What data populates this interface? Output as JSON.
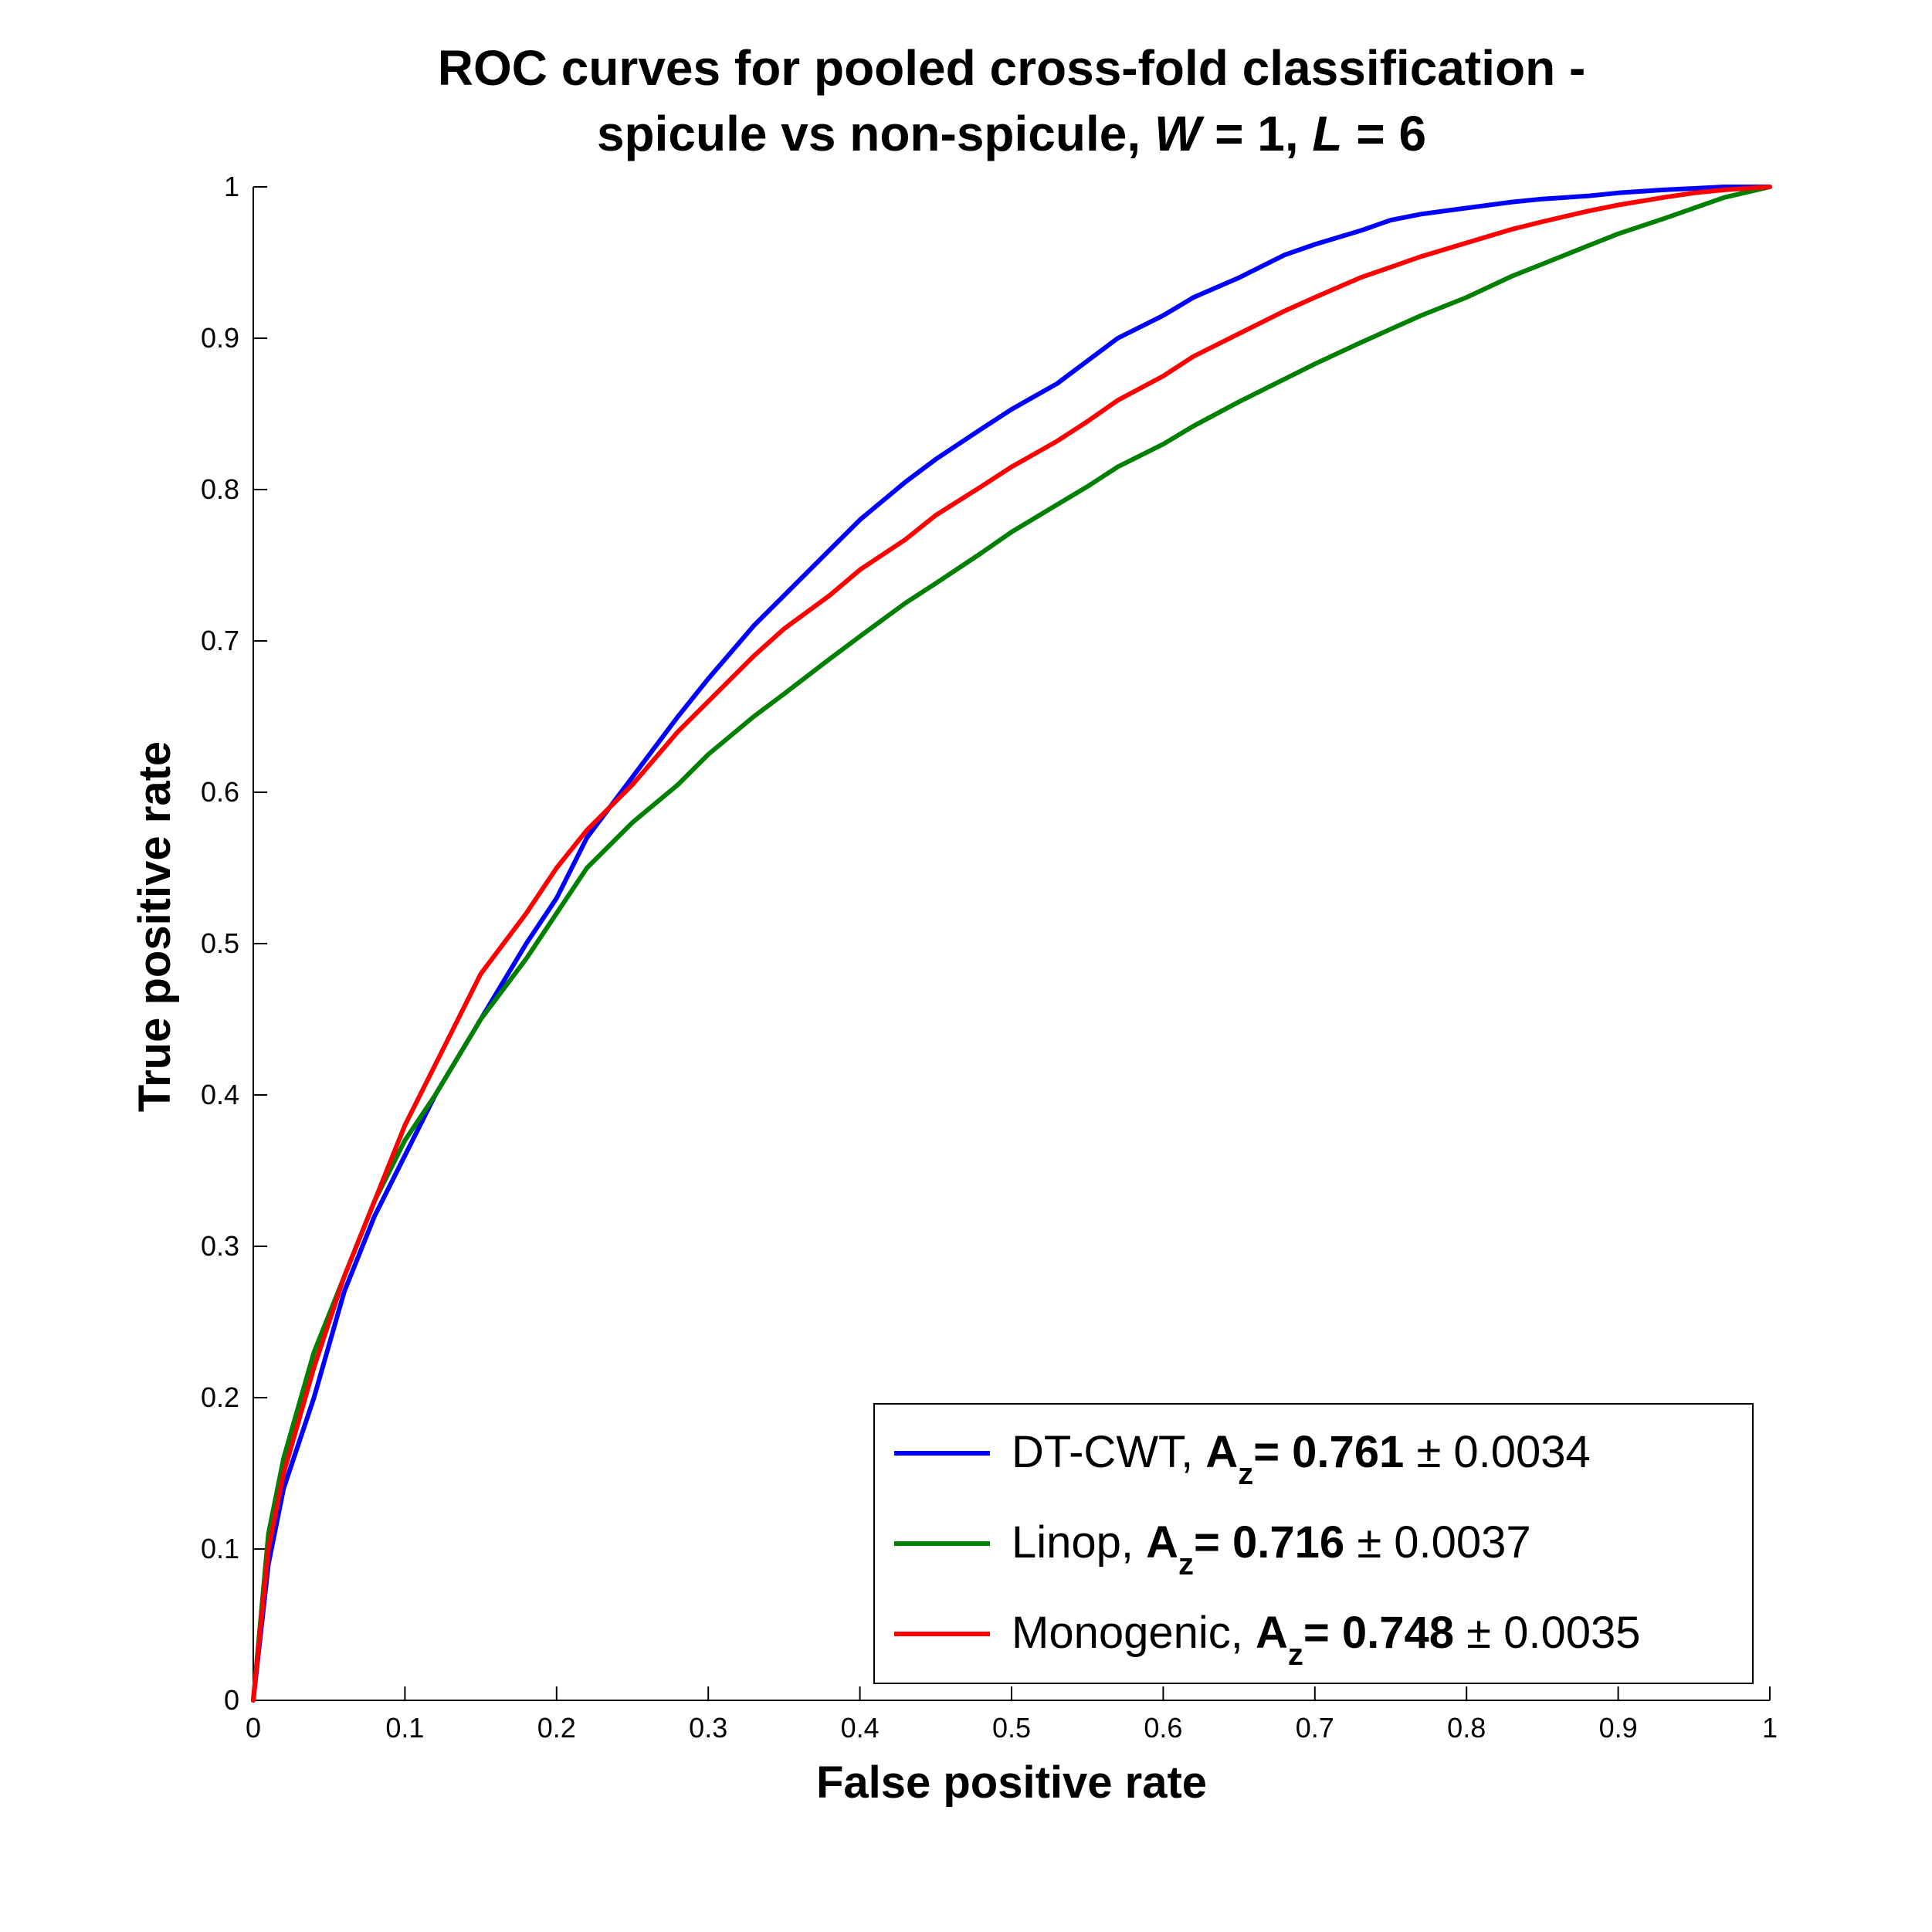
{
  "chart_data": {
    "type": "line",
    "title_line1": "ROC curves for pooled cross-fold classification -",
    "title_line2_prefix": "spicule vs non-spicule,  ",
    "title_w_symbol": "W",
    "title_w_value": " = 1,  ",
    "title_l_symbol": "L",
    "title_l_value": " = 6",
    "xlabel": "False positive rate",
    "ylabel": "True positive rate",
    "xlim": [
      0,
      1
    ],
    "ylim": [
      0,
      1
    ],
    "xticks": [
      "0",
      "0.1",
      "0.2",
      "0.3",
      "0.4",
      "0.5",
      "0.6",
      "0.7",
      "0.8",
      "0.9",
      "1"
    ],
    "yticks": [
      "0",
      "0.1",
      "0.2",
      "0.3",
      "0.4",
      "0.5",
      "0.6",
      "0.7",
      "0.8",
      "0.9",
      "1"
    ],
    "grid": false,
    "legend_position": "bottom-right",
    "series": [
      {
        "name": "DT-CWT",
        "color": "#0000ff",
        "az_symbol": "A",
        "az_sub": "z",
        "az_value": "= 0.761",
        "az_error": "± 0.0034",
        "x": [
          0,
          0.01,
          0.02,
          0.04,
          0.06,
          0.08,
          0.1,
          0.12,
          0.15,
          0.18,
          0.2,
          0.22,
          0.25,
          0.28,
          0.3,
          0.33,
          0.35,
          0.38,
          0.4,
          0.43,
          0.45,
          0.48,
          0.5,
          0.53,
          0.55,
          0.57,
          0.6,
          0.62,
          0.65,
          0.68,
          0.7,
          0.73,
          0.75,
          0.77,
          0.8,
          0.83,
          0.85,
          0.88,
          0.9,
          0.93,
          0.95,
          0.97,
          1.0
        ],
        "y": [
          0,
          0.09,
          0.14,
          0.2,
          0.27,
          0.32,
          0.36,
          0.4,
          0.45,
          0.5,
          0.53,
          0.57,
          0.61,
          0.65,
          0.675,
          0.71,
          0.73,
          0.76,
          0.78,
          0.805,
          0.82,
          0.84,
          0.853,
          0.87,
          0.885,
          0.9,
          0.915,
          0.927,
          0.94,
          0.955,
          0.962,
          0.971,
          0.978,
          0.982,
          0.986,
          0.99,
          0.992,
          0.994,
          0.996,
          0.998,
          0.999,
          1.0,
          1.0
        ]
      },
      {
        "name": "Linop",
        "color": "#008000",
        "az_symbol": "A",
        "az_sub": "z",
        "az_value": "= 0.716",
        "az_error": "± 0.0037",
        "x": [
          0,
          0.01,
          0.02,
          0.04,
          0.06,
          0.08,
          0.1,
          0.12,
          0.15,
          0.18,
          0.2,
          0.22,
          0.25,
          0.28,
          0.3,
          0.33,
          0.35,
          0.38,
          0.4,
          0.43,
          0.45,
          0.48,
          0.5,
          0.53,
          0.55,
          0.57,
          0.6,
          0.62,
          0.65,
          0.68,
          0.7,
          0.73,
          0.75,
          0.77,
          0.8,
          0.83,
          0.85,
          0.88,
          0.9,
          0.93,
          0.95,
          0.97,
          1.0
        ],
        "y": [
          0,
          0.11,
          0.16,
          0.23,
          0.28,
          0.33,
          0.37,
          0.4,
          0.45,
          0.49,
          0.52,
          0.55,
          0.58,
          0.605,
          0.625,
          0.65,
          0.665,
          0.688,
          0.703,
          0.725,
          0.738,
          0.758,
          0.772,
          0.79,
          0.802,
          0.815,
          0.83,
          0.842,
          0.858,
          0.873,
          0.883,
          0.897,
          0.906,
          0.915,
          0.927,
          0.941,
          0.949,
          0.961,
          0.969,
          0.979,
          0.986,
          0.993,
          1.0
        ]
      },
      {
        "name": "Monogenic",
        "color": "#ff0000",
        "az_symbol": "A",
        "az_sub": "z",
        "az_value": "= 0.748",
        "az_error": "± 0.0035",
        "x": [
          0,
          0.01,
          0.02,
          0.04,
          0.06,
          0.08,
          0.1,
          0.12,
          0.15,
          0.18,
          0.2,
          0.22,
          0.25,
          0.28,
          0.3,
          0.33,
          0.35,
          0.38,
          0.4,
          0.43,
          0.45,
          0.48,
          0.5,
          0.53,
          0.55,
          0.57,
          0.6,
          0.62,
          0.65,
          0.68,
          0.7,
          0.73,
          0.75,
          0.77,
          0.8,
          0.83,
          0.85,
          0.88,
          0.9,
          0.93,
          0.95,
          0.97,
          1.0
        ],
        "y": [
          0,
          0.1,
          0.15,
          0.22,
          0.28,
          0.33,
          0.38,
          0.42,
          0.48,
          0.52,
          0.55,
          0.575,
          0.605,
          0.64,
          0.66,
          0.69,
          0.708,
          0.73,
          0.747,
          0.767,
          0.783,
          0.802,
          0.815,
          0.832,
          0.845,
          0.859,
          0.875,
          0.888,
          0.903,
          0.918,
          0.927,
          0.94,
          0.947,
          0.954,
          0.963,
          0.972,
          0.977,
          0.984,
          0.988,
          0.993,
          0.996,
          0.998,
          1.0
        ]
      }
    ]
  }
}
